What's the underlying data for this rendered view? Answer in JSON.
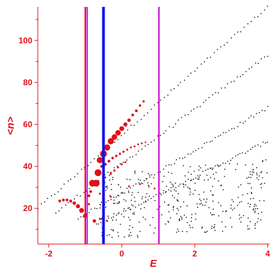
{
  "chart_data": {
    "type": "scatter",
    "xlabel": "E",
    "ylabel": "<n>",
    "xlim": [
      -2.3,
      4.05
    ],
    "ylim": [
      3,
      116
    ],
    "grid": false,
    "xticks": [
      {
        "value": -2,
        "label": "-2"
      },
      {
        "value": 0,
        "label": "0"
      },
      {
        "value": 2,
        "label": "2"
      },
      {
        "value": 4,
        "label": "4"
      }
    ],
    "yticks": [
      {
        "value": 20,
        "label": "20"
      },
      {
        "value": 40,
        "label": "40"
      },
      {
        "value": 60,
        "label": "60"
      },
      {
        "value": 80,
        "label": "80"
      },
      {
        "value": 100,
        "label": "100"
      }
    ],
    "vertical_lines": [
      {
        "x": -1.0,
        "color": "#e0101a"
      },
      {
        "x": -0.95,
        "color": "#cc00cc"
      },
      {
        "x": -0.5,
        "color": "#1010ee"
      },
      {
        "x": 1.02,
        "color": "#cc00cc"
      }
    ],
    "colors": {
      "axis": "#e0101a",
      "background_points": "#000000",
      "highlight_points": "#e0101a"
    },
    "series": [
      {
        "marker": "small-black-dot",
        "bands": [
          {
            "x_start": -2.3,
            "x_end": 4.0,
            "y_start": 20,
            "y_end": 116
          },
          {
            "x_start": -1.8,
            "x_end": 4.0,
            "y_start": 18,
            "y_end": 93
          },
          {
            "x_start": -1.2,
            "x_end": 4.0,
            "y_start": 15,
            "y_end": 68
          },
          {
            "x_start": -0.7,
            "x_end": 4.0,
            "y_start": 12,
            "y_end": 52
          }
        ],
        "cloud": {
          "x_range": [
            -0.6,
            4.0
          ],
          "y_range": [
            5,
            45
          ]
        }
      },
      {
        "marker": "red-circle",
        "points": [
          {
            "x": -1.7,
            "y": 23.5,
            "size": 2
          },
          {
            "x": -1.6,
            "y": 24.0,
            "size": 2
          },
          {
            "x": -1.5,
            "y": 24.0,
            "size": 2
          },
          {
            "x": -1.4,
            "y": 23.5,
            "size": 2
          },
          {
            "x": -1.3,
            "y": 22.5,
            "size": 2.5
          },
          {
            "x": -1.2,
            "y": 21.0,
            "size": 3
          },
          {
            "x": -1.1,
            "y": 19.0,
            "size": 3.5
          },
          {
            "x": -1.0,
            "y": 16.5,
            "size": 3
          },
          {
            "x": -0.8,
            "y": 32.0,
            "size": 5
          },
          {
            "x": -0.7,
            "y": 32.0,
            "size": 5
          },
          {
            "x": -0.65,
            "y": 37.0,
            "size": 5
          },
          {
            "x": -0.6,
            "y": 43.0,
            "size": 4.5
          },
          {
            "x": -0.5,
            "y": 46.0,
            "size": 5
          },
          {
            "x": -0.4,
            "y": 49.0,
            "size": 4.5
          },
          {
            "x": -0.3,
            "y": 52.0,
            "size": 4.5
          },
          {
            "x": -0.2,
            "y": 54.0,
            "size": 4
          },
          {
            "x": -0.1,
            "y": 56.0,
            "size": 4
          },
          {
            "x": 0.0,
            "y": 58.0,
            "size": 3.5
          },
          {
            "x": 0.1,
            "y": 60.0,
            "size": 3
          },
          {
            "x": 0.2,
            "y": 62.0,
            "size": 2.5
          },
          {
            "x": 0.3,
            "y": 64.5,
            "size": 2
          },
          {
            "x": 0.4,
            "y": 66.5,
            "size": 2
          },
          {
            "x": 0.5,
            "y": 69.0,
            "size": 1.8
          },
          {
            "x": 0.6,
            "y": 71.0,
            "size": 1.6
          },
          {
            "x": -0.9,
            "y": 26.0,
            "size": 2
          },
          {
            "x": -0.85,
            "y": 28.0,
            "size": 2
          },
          {
            "x": -0.75,
            "y": 14.0,
            "size": 2.5
          },
          {
            "x": -0.55,
            "y": 40.0,
            "size": 2
          },
          {
            "x": -0.45,
            "y": 41.0,
            "size": 2
          },
          {
            "x": -0.35,
            "y": 42.5,
            "size": 2
          },
          {
            "x": -0.25,
            "y": 44.0,
            "size": 1.8
          },
          {
            "x": -0.15,
            "y": 45.0,
            "size": 1.8
          },
          {
            "x": -0.05,
            "y": 46.0,
            "size": 1.6
          },
          {
            "x": 0.05,
            "y": 47.0,
            "size": 1.6
          },
          {
            "x": 0.15,
            "y": 48.0,
            "size": 1.4
          },
          {
            "x": 0.25,
            "y": 49.0,
            "size": 1.4
          },
          {
            "x": 0.35,
            "y": 49.5,
            "size": 1.4
          },
          {
            "x": 0.45,
            "y": 50.5,
            "size": 1.3
          },
          {
            "x": 0.55,
            "y": 51.0,
            "size": 1.3
          },
          {
            "x": 0.65,
            "y": 51.5,
            "size": 1.2
          },
          {
            "x": -0.3,
            "y": 36.5,
            "size": 1.6
          },
          {
            "x": -0.2,
            "y": 38.0,
            "size": 1.6
          },
          {
            "x": -0.1,
            "y": 39.5,
            "size": 1.5
          },
          {
            "x": 0.0,
            "y": 41.0,
            "size": 1.5
          },
          {
            "x": 0.1,
            "y": 42.0,
            "size": 1.4
          },
          {
            "x": -0.9,
            "y": 22.0,
            "size": 1.6
          },
          {
            "x": -0.6,
            "y": 27.0,
            "size": 1.5
          },
          {
            "x": -0.5,
            "y": 23.5,
            "size": 1.5
          },
          {
            "x": -0.3,
            "y": 25.5,
            "size": 1.4
          },
          {
            "x": 0.2,
            "y": 30.5,
            "size": 1.4
          },
          {
            "x": 0.5,
            "y": 31.5,
            "size": 1.3
          },
          {
            "x": 0.9,
            "y": 29.5,
            "size": 1.3
          },
          {
            "x": -0.6,
            "y": 15.0,
            "size": 1.5
          },
          {
            "x": -0.4,
            "y": 14.0,
            "size": 1.4
          }
        ]
      }
    ]
  }
}
